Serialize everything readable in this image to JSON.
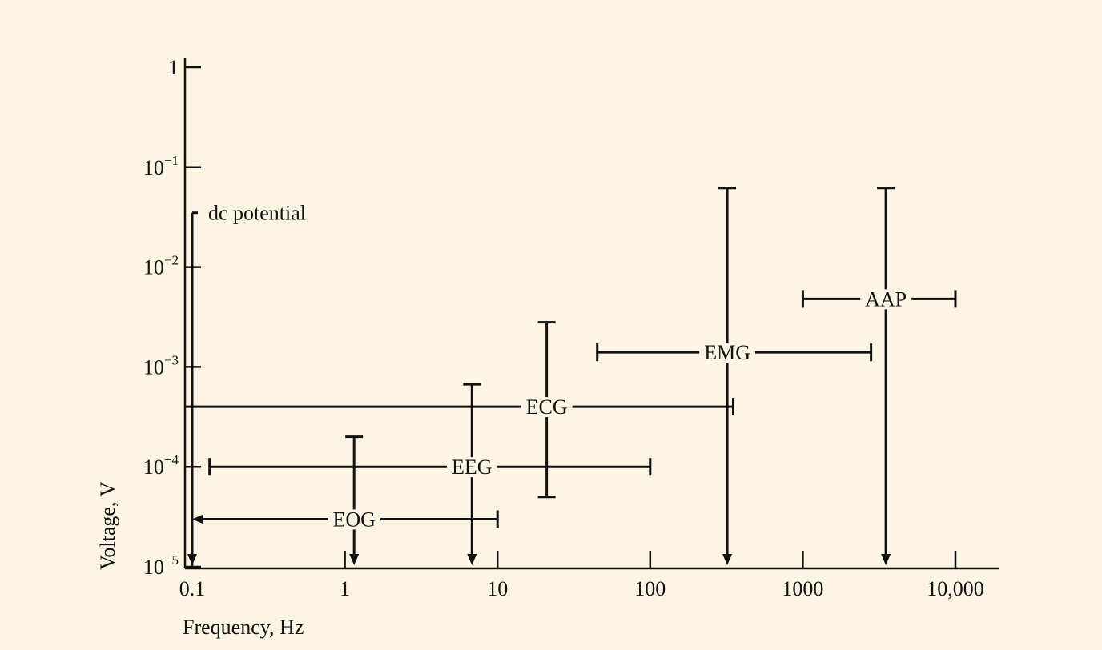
{
  "colors": {
    "background": "#fdf5e3",
    "ink": "#111111"
  },
  "chart_data": {
    "type": "errorbar-range",
    "title": "",
    "xlabel": "Frequency, Hz",
    "ylabel": "Voltage, V",
    "x_scale": "log",
    "y_scale": "log",
    "xlim": [
      0.09,
      20000
    ],
    "ylim": [
      1e-05,
      1
    ],
    "x_ticks": [
      {
        "value": 0.1,
        "label": "0.1"
      },
      {
        "value": 1,
        "label": "1"
      },
      {
        "value": 10,
        "label": "10"
      },
      {
        "value": 100,
        "label": "100"
      },
      {
        "value": 1000,
        "label": "1000"
      },
      {
        "value": 10000,
        "label": "10,000"
      }
    ],
    "y_ticks": [
      {
        "value": 1,
        "base": "1",
        "exp": ""
      },
      {
        "value": 0.1,
        "base": "10",
        "exp": "−1"
      },
      {
        "value": 0.01,
        "base": "10",
        "exp": "−2"
      },
      {
        "value": 0.001,
        "base": "10",
        "exp": "−3"
      },
      {
        "value": 0.0001,
        "base": "10",
        "exp": "−4"
      },
      {
        "value": 1e-05,
        "base": "10",
        "exp": "−5"
      }
    ],
    "grid": false,
    "signals": [
      {
        "name": "dc potential",
        "label": "dc potential",
        "freq_range": null,
        "freq_at": 0.1,
        "volt_range": [
          1e-05,
          0.035
        ],
        "volt_at": null,
        "freq_low_arrow": false,
        "volt_low_arrow": true
      },
      {
        "name": "EOG",
        "label": "EOG",
        "freq_range": [
          0.1,
          10
        ],
        "freq_at": 1.15,
        "volt_range": [
          1e-05,
          0.0002
        ],
        "volt_at": 3e-05,
        "freq_low_arrow": true,
        "volt_low_arrow": true
      },
      {
        "name": "EEG",
        "label": "EEG",
        "freq_range": [
          0.13,
          100
        ],
        "freq_at": 6.8,
        "volt_range": [
          1e-05,
          0.00067
        ],
        "volt_at": 0.0001,
        "freq_low_arrow": false,
        "volt_low_arrow": true
      },
      {
        "name": "ECG",
        "label": "ECG",
        "freq_range": [
          0.09,
          350
        ],
        "freq_at": 21,
        "volt_range": [
          5e-05,
          0.0028
        ],
        "volt_at": 0.0004,
        "freq_low_arrow": false,
        "volt_low_arrow": false
      },
      {
        "name": "EMG",
        "label": "EMG",
        "freq_range": [
          45,
          2800
        ],
        "freq_at": 320,
        "volt_range": [
          1e-05,
          0.062
        ],
        "volt_at": 0.0014,
        "freq_low_arrow": false,
        "volt_low_arrow": true
      },
      {
        "name": "AAP",
        "label": "AAP",
        "freq_range": [
          1000,
          10000
        ],
        "freq_at": 3500,
        "volt_range": [
          1e-05,
          0.062
        ],
        "volt_at": 0.0048,
        "freq_low_arrow": false,
        "volt_low_arrow": true
      }
    ]
  }
}
